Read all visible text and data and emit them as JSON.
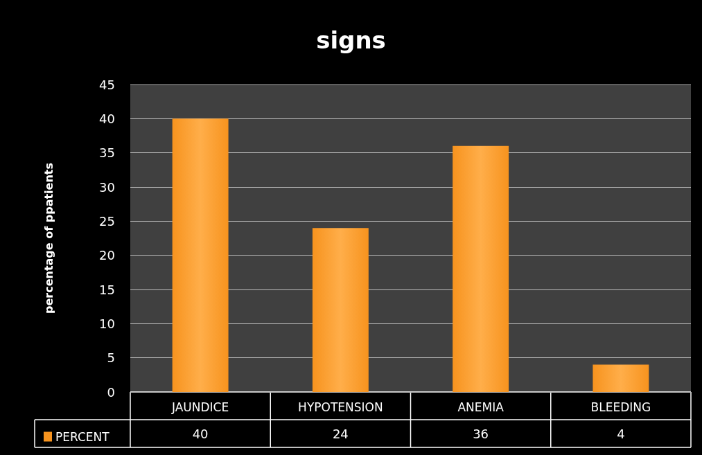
{
  "chart_data": {
    "type": "bar",
    "title": "signs",
    "ylabel": "percentage of ppatients",
    "categories": [
      "JAUNDICE",
      "HYPOTENSION",
      "ANEMIA",
      "BLEEDING"
    ],
    "series": [
      {
        "name": "PERCENT",
        "color": "#f7931e",
        "values": [
          40,
          24,
          36,
          4
        ]
      }
    ],
    "ylim": [
      0,
      45
    ],
    "yticks": [
      0,
      5,
      10,
      15,
      20,
      25,
      30,
      35,
      40,
      45
    ],
    "grid": "y",
    "legend": "bottom",
    "data_labels": true
  }
}
